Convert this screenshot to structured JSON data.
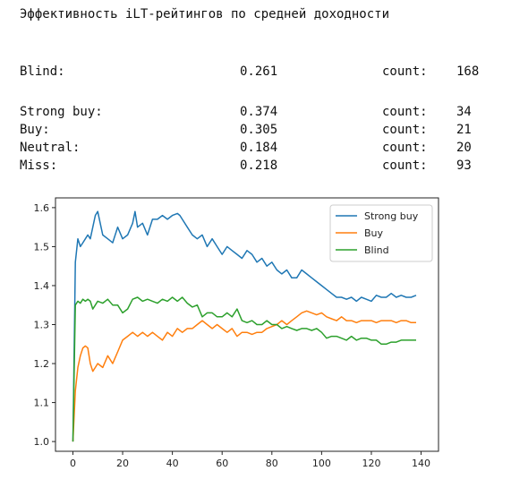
{
  "header": {
    "title": "Эффективность iLT-рейтингов по средней доходности"
  },
  "stats": {
    "blind": {
      "label": "Blind:",
      "value": "0.261",
      "count_label": "count:",
      "count": "168"
    },
    "rows": [
      {
        "label": "Strong buy:",
        "value": "0.374",
        "count_label": "count:",
        "count": "34"
      },
      {
        "label": "Buy:",
        "value": "0.305",
        "count_label": "count:",
        "count": "21"
      },
      {
        "label": "Neutral:",
        "value": "0.184",
        "count_label": "count:",
        "count": "20"
      },
      {
        "label": "Miss:",
        "value": "0.218",
        "count_label": "count:",
        "count": "93"
      }
    ]
  },
  "chart_data": {
    "type": "line",
    "xlim": [
      -7,
      147
    ],
    "ylim": [
      0.975,
      1.625
    ],
    "xticks": [
      0,
      20,
      40,
      60,
      80,
      100,
      120,
      140
    ],
    "yticks": [
      1.0,
      1.1,
      1.2,
      1.3,
      1.4,
      1.5,
      1.6
    ],
    "grid": false,
    "legend_position": "top-right",
    "series": [
      {
        "name": "Strong buy",
        "color": "#1f77b4",
        "points": [
          [
            0,
            1.0
          ],
          [
            1,
            1.46
          ],
          [
            2,
            1.52
          ],
          [
            3,
            1.5
          ],
          [
            4,
            1.51
          ],
          [
            5,
            1.52
          ],
          [
            6,
            1.53
          ],
          [
            7,
            1.52
          ],
          [
            8,
            1.55
          ],
          [
            9,
            1.58
          ],
          [
            10,
            1.59
          ],
          [
            11,
            1.56
          ],
          [
            12,
            1.53
          ],
          [
            14,
            1.52
          ],
          [
            16,
            1.51
          ],
          [
            18,
            1.55
          ],
          [
            20,
            1.52
          ],
          [
            22,
            1.53
          ],
          [
            24,
            1.56
          ],
          [
            25,
            1.59
          ],
          [
            26,
            1.55
          ],
          [
            28,
            1.56
          ],
          [
            30,
            1.53
          ],
          [
            32,
            1.57
          ],
          [
            34,
            1.57
          ],
          [
            36,
            1.58
          ],
          [
            38,
            1.57
          ],
          [
            40,
            1.58
          ],
          [
            42,
            1.585
          ],
          [
            43,
            1.58
          ],
          [
            44,
            1.57
          ],
          [
            46,
            1.55
          ],
          [
            48,
            1.53
          ],
          [
            50,
            1.52
          ],
          [
            52,
            1.53
          ],
          [
            54,
            1.5
          ],
          [
            56,
            1.52
          ],
          [
            58,
            1.5
          ],
          [
            60,
            1.48
          ],
          [
            62,
            1.5
          ],
          [
            64,
            1.49
          ],
          [
            66,
            1.48
          ],
          [
            68,
            1.47
          ],
          [
            70,
            1.49
          ],
          [
            72,
            1.48
          ],
          [
            74,
            1.46
          ],
          [
            76,
            1.47
          ],
          [
            78,
            1.45
          ],
          [
            80,
            1.46
          ],
          [
            82,
            1.44
          ],
          [
            84,
            1.43
          ],
          [
            86,
            1.44
          ],
          [
            88,
            1.42
          ],
          [
            90,
            1.42
          ],
          [
            92,
            1.44
          ],
          [
            94,
            1.43
          ],
          [
            96,
            1.42
          ],
          [
            98,
            1.41
          ],
          [
            100,
            1.4
          ],
          [
            102,
            1.39
          ],
          [
            104,
            1.38
          ],
          [
            106,
            1.37
          ],
          [
            108,
            1.37
          ],
          [
            110,
            1.365
          ],
          [
            112,
            1.37
          ],
          [
            114,
            1.36
          ],
          [
            116,
            1.37
          ],
          [
            118,
            1.365
          ],
          [
            120,
            1.36
          ],
          [
            122,
            1.375
          ],
          [
            124,
            1.37
          ],
          [
            126,
            1.37
          ],
          [
            128,
            1.38
          ],
          [
            130,
            1.37
          ],
          [
            132,
            1.375
          ],
          [
            134,
            1.37
          ],
          [
            136,
            1.37
          ],
          [
            138,
            1.375
          ]
        ]
      },
      {
        "name": "Buy",
        "color": "#ff7f0e",
        "points": [
          [
            0,
            1.0
          ],
          [
            1,
            1.13
          ],
          [
            2,
            1.19
          ],
          [
            3,
            1.22
          ],
          [
            4,
            1.24
          ],
          [
            5,
            1.245
          ],
          [
            6,
            1.24
          ],
          [
            7,
            1.2
          ],
          [
            8,
            1.18
          ],
          [
            9,
            1.19
          ],
          [
            10,
            1.2
          ],
          [
            12,
            1.19
          ],
          [
            14,
            1.22
          ],
          [
            16,
            1.2
          ],
          [
            18,
            1.23
          ],
          [
            20,
            1.26
          ],
          [
            22,
            1.27
          ],
          [
            24,
            1.28
          ],
          [
            26,
            1.27
          ],
          [
            28,
            1.28
          ],
          [
            30,
            1.27
          ],
          [
            32,
            1.28
          ],
          [
            34,
            1.27
          ],
          [
            36,
            1.26
          ],
          [
            38,
            1.28
          ],
          [
            40,
            1.27
          ],
          [
            42,
            1.29
          ],
          [
            44,
            1.28
          ],
          [
            46,
            1.29
          ],
          [
            48,
            1.29
          ],
          [
            50,
            1.3
          ],
          [
            52,
            1.31
          ],
          [
            54,
            1.3
          ],
          [
            56,
            1.29
          ],
          [
            58,
            1.3
          ],
          [
            60,
            1.29
          ],
          [
            62,
            1.28
          ],
          [
            64,
            1.29
          ],
          [
            66,
            1.27
          ],
          [
            68,
            1.28
          ],
          [
            70,
            1.28
          ],
          [
            72,
            1.275
          ],
          [
            74,
            1.28
          ],
          [
            76,
            1.28
          ],
          [
            78,
            1.29
          ],
          [
            80,
            1.295
          ],
          [
            82,
            1.3
          ],
          [
            84,
            1.31
          ],
          [
            86,
            1.3
          ],
          [
            88,
            1.31
          ],
          [
            90,
            1.32
          ],
          [
            92,
            1.33
          ],
          [
            94,
            1.335
          ],
          [
            96,
            1.33
          ],
          [
            98,
            1.325
          ],
          [
            100,
            1.33
          ],
          [
            102,
            1.32
          ],
          [
            104,
            1.315
          ],
          [
            106,
            1.31
          ],
          [
            108,
            1.32
          ],
          [
            110,
            1.31
          ],
          [
            112,
            1.31
          ],
          [
            114,
            1.305
          ],
          [
            116,
            1.31
          ],
          [
            118,
            1.31
          ],
          [
            120,
            1.31
          ],
          [
            122,
            1.305
          ],
          [
            124,
            1.31
          ],
          [
            126,
            1.31
          ],
          [
            128,
            1.31
          ],
          [
            130,
            1.305
          ],
          [
            132,
            1.31
          ],
          [
            134,
            1.31
          ],
          [
            136,
            1.305
          ],
          [
            138,
            1.305
          ]
        ]
      },
      {
        "name": "Blind",
        "color": "#2ca02c",
        "points": [
          [
            0,
            1.0
          ],
          [
            1,
            1.35
          ],
          [
            2,
            1.36
          ],
          [
            3,
            1.355
          ],
          [
            4,
            1.365
          ],
          [
            5,
            1.36
          ],
          [
            6,
            1.365
          ],
          [
            7,
            1.36
          ],
          [
            8,
            1.34
          ],
          [
            9,
            1.35
          ],
          [
            10,
            1.36
          ],
          [
            12,
            1.355
          ],
          [
            14,
            1.365
          ],
          [
            16,
            1.35
          ],
          [
            18,
            1.35
          ],
          [
            20,
            1.33
          ],
          [
            22,
            1.34
          ],
          [
            24,
            1.365
          ],
          [
            26,
            1.37
          ],
          [
            28,
            1.36
          ],
          [
            30,
            1.365
          ],
          [
            32,
            1.36
          ],
          [
            34,
            1.355
          ],
          [
            36,
            1.365
          ],
          [
            38,
            1.36
          ],
          [
            40,
            1.37
          ],
          [
            42,
            1.36
          ],
          [
            44,
            1.37
          ],
          [
            46,
            1.355
          ],
          [
            48,
            1.345
          ],
          [
            50,
            1.35
          ],
          [
            52,
            1.32
          ],
          [
            54,
            1.33
          ],
          [
            56,
            1.33
          ],
          [
            58,
            1.32
          ],
          [
            60,
            1.32
          ],
          [
            62,
            1.33
          ],
          [
            64,
            1.32
          ],
          [
            66,
            1.34
          ],
          [
            68,
            1.31
          ],
          [
            70,
            1.305
          ],
          [
            72,
            1.31
          ],
          [
            74,
            1.3
          ],
          [
            76,
            1.3
          ],
          [
            78,
            1.31
          ],
          [
            80,
            1.3
          ],
          [
            82,
            1.3
          ],
          [
            84,
            1.29
          ],
          [
            86,
            1.295
          ],
          [
            88,
            1.29
          ],
          [
            90,
            1.285
          ],
          [
            92,
            1.29
          ],
          [
            94,
            1.29
          ],
          [
            96,
            1.285
          ],
          [
            98,
            1.29
          ],
          [
            100,
            1.28
          ],
          [
            102,
            1.265
          ],
          [
            104,
            1.27
          ],
          [
            106,
            1.27
          ],
          [
            108,
            1.265
          ],
          [
            110,
            1.26
          ],
          [
            112,
            1.27
          ],
          [
            114,
            1.26
          ],
          [
            116,
            1.265
          ],
          [
            118,
            1.265
          ],
          [
            120,
            1.26
          ],
          [
            122,
            1.26
          ],
          [
            124,
            1.25
          ],
          [
            126,
            1.25
          ],
          [
            128,
            1.255
          ],
          [
            130,
            1.255
          ],
          [
            132,
            1.26
          ],
          [
            134,
            1.26
          ],
          [
            136,
            1.26
          ],
          [
            138,
            1.26
          ]
        ]
      }
    ]
  }
}
